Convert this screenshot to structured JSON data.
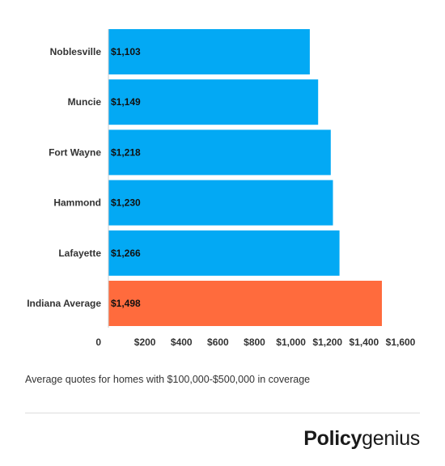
{
  "chart_data": {
    "type": "bar",
    "orientation": "horizontal",
    "categories": [
      "Noblesville",
      "Muncie",
      "Fort Wayne",
      "Hammond",
      "Lafayette",
      "Indiana Average"
    ],
    "values": [
      1103,
      1149,
      1218,
      1230,
      1266,
      1498
    ],
    "data_labels": [
      "$1,103",
      "$1,149",
      "$1,218",
      "$1,230",
      "$1,266",
      "$1,498"
    ],
    "bar_colors": [
      "#03a9f4",
      "#03a9f4",
      "#03a9f4",
      "#03a9f4",
      "#03a9f4",
      "#ff6b3d"
    ],
    "xlim": [
      0,
      1600
    ],
    "x_ticks": [
      0,
      200,
      400,
      600,
      800,
      1000,
      1200,
      1400,
      1600
    ],
    "x_tick_labels": [
      "0",
      "$200",
      "$400",
      "$600",
      "$800",
      "$1,000",
      "$1,200",
      "$1,400",
      "$1,600"
    ],
    "grid": false,
    "legend": "none"
  },
  "caption": "Average quotes for homes with $100,000-$500,000 in coverage",
  "logo": {
    "strong": "Policy",
    "light": "genius"
  }
}
